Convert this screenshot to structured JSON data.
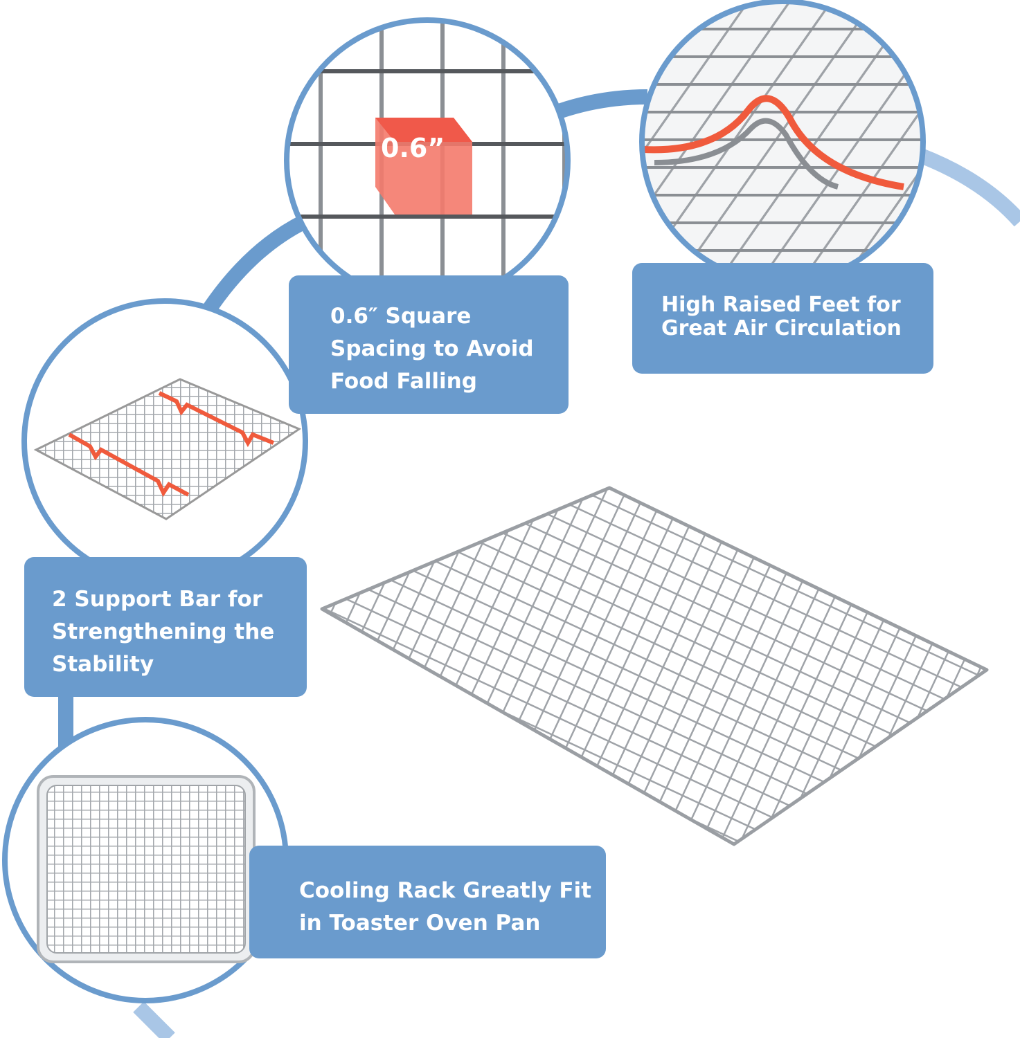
{
  "colors": {
    "accent_blue": "#6a9bcd",
    "highlight_red": "#f25c4b",
    "steel": "#9a9ea3"
  },
  "features": [
    {
      "lines": [
        "0.6″ Square",
        "Spacing to  Avoid",
        "Food Falling"
      ],
      "callout_label": "0.6”",
      "icon": "grid-spacing-closeup"
    },
    {
      "lines": [
        "High Raised Feet for",
        "Great Air Circulation"
      ],
      "icon": "raised-feet-closeup"
    },
    {
      "lines": [
        "2 Support Bar for",
        "Strengthening the",
        "Stability"
      ],
      "icon": "support-bar-rack"
    },
    {
      "lines": [
        "Cooling Rack Greatly Fit",
        "in Toaster Oven Pan"
      ],
      "icon": "rack-in-pan"
    }
  ]
}
